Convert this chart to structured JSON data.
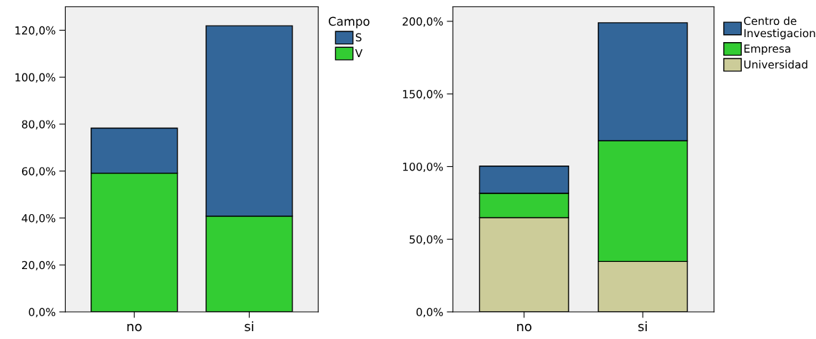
{
  "chart_data": [
    {
      "type": "bar",
      "stacked": true,
      "categories": [
        "no",
        "si"
      ],
      "legend_title": "Campo",
      "legend": "right",
      "grid": false,
      "series": [
        {
          "name": "V",
          "color": "#33cc33",
          "values": [
            59.1,
            40.8
          ]
        },
        {
          "name": "S",
          "color": "#336699",
          "values": [
            19.2,
            81.1
          ]
        }
      ],
      "ylim": [
        0,
        130
      ],
      "yticks": [
        {
          "value": 0,
          "label": "0,0%"
        },
        {
          "value": 20,
          "label": "20,0%"
        },
        {
          "value": 40,
          "label": "40,0%"
        },
        {
          "value": 60,
          "label": "60,0%"
        },
        {
          "value": 80,
          "label": "80,0%"
        },
        {
          "value": 100,
          "label": "100,0%"
        },
        {
          "value": 120,
          "label": "120,0%"
        }
      ]
    },
    {
      "type": "bar",
      "stacked": true,
      "categories": [
        "no",
        "si"
      ],
      "legend": "right",
      "grid": false,
      "series": [
        {
          "name": "Universidad",
          "color": "#cccc99",
          "values": [
            64.9,
            34.7
          ]
        },
        {
          "name": "Empresa",
          "color": "#33cc33",
          "values": [
            16.8,
            83.1
          ]
        },
        {
          "name": "Centro de\nInvestigacion",
          "color": "#336699",
          "values": [
            18.6,
            81.2
          ]
        }
      ],
      "ylim": [
        0,
        210
      ],
      "yticks": [
        {
          "value": 0,
          "label": "0,0%"
        },
        {
          "value": 50,
          "label": "50,0%"
        },
        {
          "value": 100,
          "label": "100,0%"
        },
        {
          "value": 150,
          "label": "150,0%"
        },
        {
          "value": 200,
          "label": "200,0%"
        }
      ]
    }
  ]
}
